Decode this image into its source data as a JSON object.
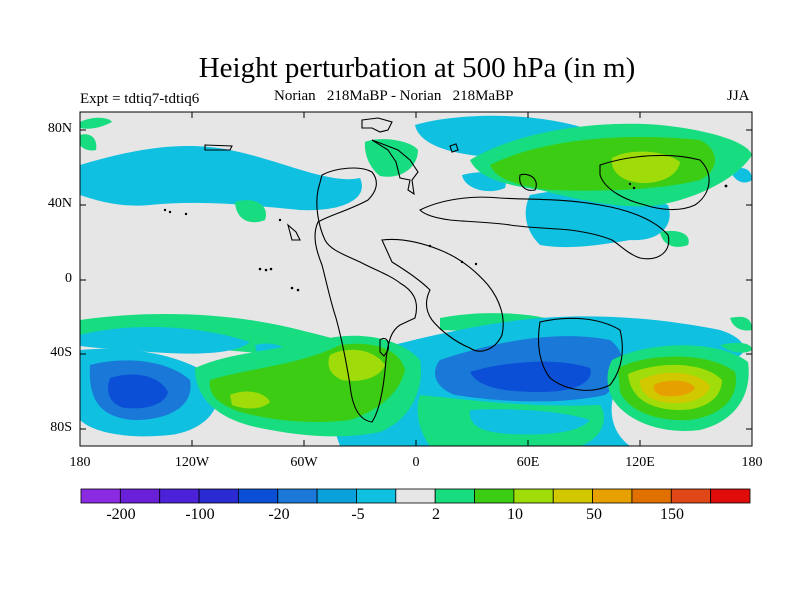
{
  "title": "Height perturbation at 500 hPa (in m)",
  "left_label": "Expt = tdtiq7-tdtiq6",
  "center_label": "Norian   218MaBP - Norian   218MaBP",
  "season": "JJA",
  "lat_ticks": [
    "80N",
    "40N",
    "0",
    "40S",
    "80S"
  ],
  "lon_ticks": [
    "180",
    "120W",
    "60W",
    "0",
    "60E",
    "120E",
    "180"
  ],
  "colorbar": {
    "colors": [
      "#8a2be2",
      "#6a1fd9",
      "#4b22d8",
      "#2a2ad2",
      "#0a4fd6",
      "#1a78d8",
      "#0aa0dc",
      "#10c0e0",
      "#e6e6e6",
      "#18dc80",
      "#3ccc14",
      "#a0dc0a",
      "#d2c800",
      "#e6a000",
      "#e07000",
      "#e04818",
      "#e00c0c"
    ],
    "labels": [
      "-200",
      "-100",
      "-20",
      "-5",
      "2",
      "10",
      "50",
      "150"
    ]
  }
}
